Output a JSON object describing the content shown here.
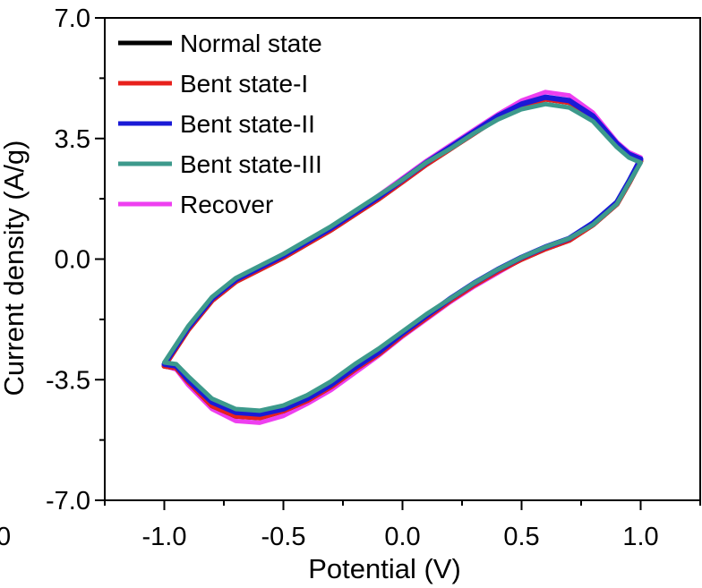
{
  "chart_data": {
    "type": "line",
    "title": "",
    "xlabel": "Potential (V)",
    "ylabel": "Current density (A/g)",
    "xlim": [
      -1.25,
      1.25
    ],
    "ylim": [
      -7.0,
      7.0
    ],
    "x_ticks": [
      -1.0,
      -0.5,
      0.0,
      0.5,
      1.0
    ],
    "x_tick_labels": [
      "-1.0",
      "-0.5",
      "0.0",
      "0.5",
      "1.0"
    ],
    "y_ticks": [
      -7.0,
      -3.5,
      0.0,
      3.5,
      7.0
    ],
    "y_tick_labels": [
      "-7.0",
      "-3.5",
      "0.0",
      "3.5",
      "7.0"
    ],
    "partial_x_label": "0",
    "grid": false,
    "legend_position": "top-left",
    "series": [
      {
        "name": "Normal state",
        "color": "#000000",
        "anodic": [
          [
            -1.0,
            -3.1
          ],
          [
            -0.9,
            -2.05
          ],
          [
            -0.8,
            -1.2
          ],
          [
            -0.7,
            -0.65
          ],
          [
            -0.6,
            -0.3
          ],
          [
            -0.5,
            0.05
          ],
          [
            -0.4,
            0.45
          ],
          [
            -0.3,
            0.85
          ],
          [
            -0.2,
            1.3
          ],
          [
            -0.1,
            1.75
          ],
          [
            0.0,
            2.25
          ],
          [
            0.1,
            2.75
          ],
          [
            0.2,
            3.2
          ],
          [
            0.3,
            3.65
          ],
          [
            0.4,
            4.1
          ],
          [
            0.5,
            4.45
          ],
          [
            0.6,
            4.65
          ],
          [
            0.7,
            4.55
          ],
          [
            0.8,
            4.1
          ],
          [
            0.9,
            3.3
          ],
          [
            0.95,
            3.0
          ],
          [
            1.0,
            2.85
          ]
        ],
        "cathodic": [
          [
            1.0,
            2.85
          ],
          [
            0.95,
            2.2
          ],
          [
            0.9,
            1.6
          ],
          [
            0.8,
            1.0
          ],
          [
            0.7,
            0.55
          ],
          [
            0.6,
            0.3
          ],
          [
            0.5,
            0.0
          ],
          [
            0.4,
            -0.35
          ],
          [
            0.3,
            -0.75
          ],
          [
            0.2,
            -1.2
          ],
          [
            0.1,
            -1.7
          ],
          [
            0.0,
            -2.2
          ],
          [
            -0.1,
            -2.75
          ],
          [
            -0.2,
            -3.2
          ],
          [
            -0.3,
            -3.7
          ],
          [
            -0.4,
            -4.1
          ],
          [
            -0.5,
            -4.4
          ],
          [
            -0.6,
            -4.6
          ],
          [
            -0.7,
            -4.55
          ],
          [
            -0.8,
            -4.25
          ],
          [
            -0.9,
            -3.55
          ],
          [
            -0.95,
            -3.15
          ],
          [
            -1.0,
            -3.1
          ]
        ]
      },
      {
        "name": "Bent state-I",
        "color": "#e8211c",
        "anodic": [
          [
            -1.0,
            -3.1
          ],
          [
            -0.9,
            -2.05
          ],
          [
            -0.8,
            -1.2
          ],
          [
            -0.7,
            -0.65
          ],
          [
            -0.6,
            -0.3
          ],
          [
            -0.5,
            0.05
          ],
          [
            -0.4,
            0.45
          ],
          [
            -0.3,
            0.85
          ],
          [
            -0.2,
            1.3
          ],
          [
            -0.1,
            1.75
          ],
          [
            0.0,
            2.25
          ],
          [
            0.1,
            2.75
          ],
          [
            0.2,
            3.2
          ],
          [
            0.3,
            3.65
          ],
          [
            0.4,
            4.1
          ],
          [
            0.5,
            4.45
          ],
          [
            0.6,
            4.65
          ],
          [
            0.7,
            4.55
          ],
          [
            0.8,
            4.1
          ],
          [
            0.9,
            3.3
          ],
          [
            0.95,
            3.0
          ],
          [
            1.0,
            2.85
          ]
        ],
        "cathodic": [
          [
            1.0,
            2.85
          ],
          [
            0.95,
            2.2
          ],
          [
            0.9,
            1.6
          ],
          [
            0.8,
            1.0
          ],
          [
            0.7,
            0.55
          ],
          [
            0.6,
            0.3
          ],
          [
            0.5,
            0.0
          ],
          [
            0.4,
            -0.35
          ],
          [
            0.3,
            -0.75
          ],
          [
            0.2,
            -1.2
          ],
          [
            0.1,
            -1.7
          ],
          [
            0.0,
            -2.2
          ],
          [
            -0.1,
            -2.75
          ],
          [
            -0.2,
            -3.2
          ],
          [
            -0.3,
            -3.7
          ],
          [
            -0.4,
            -4.1
          ],
          [
            -0.5,
            -4.4
          ],
          [
            -0.6,
            -4.6
          ],
          [
            -0.7,
            -4.55
          ],
          [
            -0.8,
            -4.25
          ],
          [
            -0.9,
            -3.55
          ],
          [
            -0.95,
            -3.15
          ],
          [
            -1.0,
            -3.1
          ]
        ]
      },
      {
        "name": "Bent state-II",
        "color": "#1a1ad6",
        "anodic": [
          [
            -1.0,
            -3.05
          ],
          [
            -0.9,
            -2.0
          ],
          [
            -0.8,
            -1.15
          ],
          [
            -0.7,
            -0.6
          ],
          [
            -0.6,
            -0.25
          ],
          [
            -0.5,
            0.1
          ],
          [
            -0.4,
            0.5
          ],
          [
            -0.3,
            0.9
          ],
          [
            -0.2,
            1.35
          ],
          [
            -0.1,
            1.8
          ],
          [
            0.0,
            2.3
          ],
          [
            0.1,
            2.8
          ],
          [
            0.2,
            3.25
          ],
          [
            0.3,
            3.7
          ],
          [
            0.4,
            4.15
          ],
          [
            0.5,
            4.5
          ],
          [
            0.6,
            4.7
          ],
          [
            0.7,
            4.6
          ],
          [
            0.8,
            4.15
          ],
          [
            0.9,
            3.35
          ],
          [
            0.95,
            3.05
          ],
          [
            1.0,
            2.9
          ]
        ],
        "cathodic": [
          [
            1.0,
            2.9
          ],
          [
            0.95,
            2.25
          ],
          [
            0.9,
            1.65
          ],
          [
            0.8,
            1.05
          ],
          [
            0.7,
            0.6
          ],
          [
            0.6,
            0.35
          ],
          [
            0.5,
            0.05
          ],
          [
            0.4,
            -0.3
          ],
          [
            0.3,
            -0.7
          ],
          [
            0.2,
            -1.15
          ],
          [
            0.1,
            -1.65
          ],
          [
            0.0,
            -2.15
          ],
          [
            -0.1,
            -2.7
          ],
          [
            -0.2,
            -3.15
          ],
          [
            -0.3,
            -3.65
          ],
          [
            -0.4,
            -4.05
          ],
          [
            -0.5,
            -4.35
          ],
          [
            -0.6,
            -4.5
          ],
          [
            -0.7,
            -4.45
          ],
          [
            -0.8,
            -4.15
          ],
          [
            -0.9,
            -3.5
          ],
          [
            -0.95,
            -3.1
          ],
          [
            -1.0,
            -3.05
          ]
        ]
      },
      {
        "name": "Bent state-III",
        "color": "#3d9a8c",
        "anodic": [
          [
            -1.0,
            -3.0
          ],
          [
            -0.9,
            -1.95
          ],
          [
            -0.8,
            -1.1
          ],
          [
            -0.7,
            -0.55
          ],
          [
            -0.6,
            -0.2
          ],
          [
            -0.5,
            0.15
          ],
          [
            -0.4,
            0.55
          ],
          [
            -0.3,
            0.95
          ],
          [
            -0.2,
            1.4
          ],
          [
            -0.1,
            1.85
          ],
          [
            0.0,
            2.3
          ],
          [
            0.1,
            2.8
          ],
          [
            0.2,
            3.2
          ],
          [
            0.3,
            3.65
          ],
          [
            0.4,
            4.05
          ],
          [
            0.5,
            4.35
          ],
          [
            0.6,
            4.5
          ],
          [
            0.7,
            4.4
          ],
          [
            0.8,
            4.0
          ],
          [
            0.9,
            3.25
          ],
          [
            0.95,
            2.95
          ],
          [
            1.0,
            2.8
          ]
        ],
        "cathodic": [
          [
            1.0,
            2.8
          ],
          [
            0.95,
            2.2
          ],
          [
            0.9,
            1.6
          ],
          [
            0.8,
            1.0
          ],
          [
            0.7,
            0.6
          ],
          [
            0.6,
            0.35
          ],
          [
            0.5,
            0.05
          ],
          [
            0.4,
            -0.3
          ],
          [
            0.3,
            -0.7
          ],
          [
            0.2,
            -1.15
          ],
          [
            0.1,
            -1.6
          ],
          [
            0.0,
            -2.1
          ],
          [
            -0.1,
            -2.6
          ],
          [
            -0.2,
            -3.05
          ],
          [
            -0.3,
            -3.55
          ],
          [
            -0.4,
            -3.95
          ],
          [
            -0.5,
            -4.25
          ],
          [
            -0.6,
            -4.4
          ],
          [
            -0.7,
            -4.35
          ],
          [
            -0.8,
            -4.05
          ],
          [
            -0.9,
            -3.4
          ],
          [
            -0.95,
            -3.05
          ],
          [
            -1.0,
            -3.0
          ]
        ]
      },
      {
        "name": "Recover",
        "color": "#ee3ff0",
        "anodic": [
          [
            -1.0,
            -3.1
          ],
          [
            -0.9,
            -2.05
          ],
          [
            -0.8,
            -1.2
          ],
          [
            -0.7,
            -0.6
          ],
          [
            -0.6,
            -0.25
          ],
          [
            -0.5,
            0.1
          ],
          [
            -0.4,
            0.5
          ],
          [
            -0.3,
            0.9
          ],
          [
            -0.2,
            1.35
          ],
          [
            -0.1,
            1.85
          ],
          [
            0.0,
            2.35
          ],
          [
            0.1,
            2.85
          ],
          [
            0.2,
            3.3
          ],
          [
            0.3,
            3.75
          ],
          [
            0.4,
            4.2
          ],
          [
            0.5,
            4.6
          ],
          [
            0.6,
            4.85
          ],
          [
            0.7,
            4.75
          ],
          [
            0.8,
            4.25
          ],
          [
            0.9,
            3.4
          ],
          [
            0.95,
            3.1
          ],
          [
            1.0,
            2.95
          ]
        ],
        "cathodic": [
          [
            1.0,
            2.95
          ],
          [
            0.95,
            2.25
          ],
          [
            0.9,
            1.6
          ],
          [
            0.8,
            1.0
          ],
          [
            0.7,
            0.55
          ],
          [
            0.6,
            0.3
          ],
          [
            0.5,
            0.0
          ],
          [
            0.4,
            -0.4
          ],
          [
            0.3,
            -0.8
          ],
          [
            0.2,
            -1.25
          ],
          [
            0.1,
            -1.75
          ],
          [
            0.0,
            -2.25
          ],
          [
            -0.1,
            -2.8
          ],
          [
            -0.2,
            -3.3
          ],
          [
            -0.3,
            -3.8
          ],
          [
            -0.4,
            -4.2
          ],
          [
            -0.5,
            -4.55
          ],
          [
            -0.6,
            -4.75
          ],
          [
            -0.7,
            -4.7
          ],
          [
            -0.8,
            -4.35
          ],
          [
            -0.9,
            -3.65
          ],
          [
            -0.95,
            -3.2
          ],
          [
            -1.0,
            -3.1
          ]
        ]
      }
    ]
  }
}
